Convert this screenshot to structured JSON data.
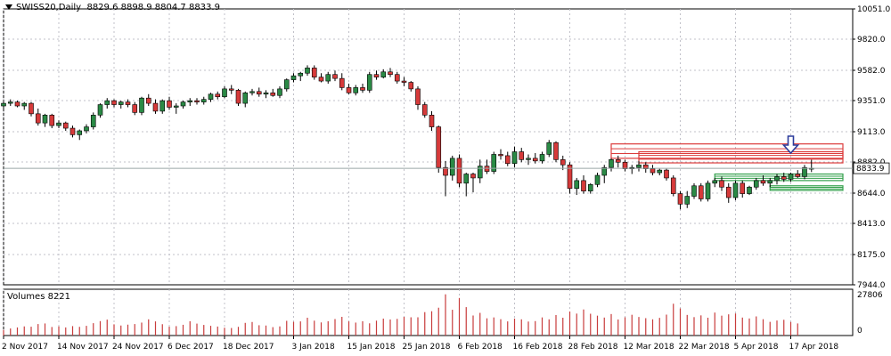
{
  "chart_data": {
    "type": "candlestick",
    "symbol_label": "SWISS20,Daily",
    "ohlc_label": "8829.6 8898.9 8804.7 8833.9",
    "last_price": "8833.9",
    "volume_label": "Volumes 8221",
    "y_ticks": [
      "10051.0",
      "9820.0",
      "9582.0",
      "9351.0",
      "9113.0",
      "8882.0",
      "8644.0",
      "8413.0",
      "8175.0",
      "7944.0"
    ],
    "y_range": [
      7944,
      10051
    ],
    "volume_ticks": [
      "27806",
      "0"
    ],
    "volume_max": 27806,
    "x_tick_labels": [
      "2 Nov 2017",
      "14 Nov 2017",
      "24 Nov 2017",
      "6 Dec 2017",
      "18 Dec 2017",
      "3 Jan 2018",
      "15 Jan 2018",
      "25 Jan 2018",
      "6 Feb 2018",
      "16 Feb 2018",
      "28 Feb 2018",
      "12 Mar 2018",
      "22 Mar 2018",
      "5 Apr 2018",
      "17 Apr 2018"
    ],
    "x_tick_index": [
      0,
      8,
      16,
      24,
      32,
      42,
      50,
      58,
      66,
      74,
      82,
      90,
      98,
      106,
      114
    ],
    "candles": [
      [
        9310,
        9340,
        9290,
        9330
      ],
      [
        9330,
        9360,
        9310,
        9340
      ],
      [
        9340,
        9350,
        9300,
        9310
      ],
      [
        9310,
        9340,
        9280,
        9330
      ],
      [
        9330,
        9340,
        9230,
        9250
      ],
      [
        9250,
        9290,
        9160,
        9180
      ],
      [
        9180,
        9250,
        9150,
        9240
      ],
      [
        9240,
        9250,
        9140,
        9160
      ],
      [
        9160,
        9200,
        9140,
        9180
      ],
      [
        9180,
        9190,
        9120,
        9140
      ],
      [
        9140,
        9160,
        9070,
        9090
      ],
      [
        9090,
        9130,
        9050,
        9120
      ],
      [
        9120,
        9170,
        9100,
        9150
      ],
      [
        9150,
        9260,
        9130,
        9240
      ],
      [
        9240,
        9330,
        9220,
        9320
      ],
      [
        9320,
        9370,
        9290,
        9350
      ],
      [
        9350,
        9360,
        9300,
        9320
      ],
      [
        9320,
        9350,
        9290,
        9340
      ],
      [
        9340,
        9360,
        9300,
        9320
      ],
      [
        9320,
        9340,
        9240,
        9260
      ],
      [
        9260,
        9380,
        9240,
        9370
      ],
      [
        9370,
        9400,
        9310,
        9330
      ],
      [
        9330,
        9360,
        9250,
        9270
      ],
      [
        9270,
        9360,
        9250,
        9350
      ],
      [
        9350,
        9380,
        9280,
        9300
      ],
      [
        9300,
        9330,
        9250,
        9310
      ],
      [
        9310,
        9350,
        9290,
        9340
      ],
      [
        9340,
        9370,
        9310,
        9350
      ],
      [
        9350,
        9370,
        9320,
        9340
      ],
      [
        9340,
        9380,
        9320,
        9360
      ],
      [
        9360,
        9410,
        9340,
        9400
      ],
      [
        9400,
        9420,
        9360,
        9380
      ],
      [
        9380,
        9460,
        9370,
        9440
      ],
      [
        9440,
        9470,
        9400,
        9430
      ],
      [
        9430,
        9440,
        9310,
        9330
      ],
      [
        9330,
        9420,
        9300,
        9410
      ],
      [
        9410,
        9440,
        9390,
        9420
      ],
      [
        9420,
        9450,
        9380,
        9400
      ],
      [
        9400,
        9430,
        9370,
        9410
      ],
      [
        9410,
        9440,
        9380,
        9390
      ],
      [
        9390,
        9460,
        9370,
        9440
      ],
      [
        9440,
        9520,
        9420,
        9510
      ],
      [
        9510,
        9560,
        9490,
        9540
      ],
      [
        9540,
        9570,
        9500,
        9560
      ],
      [
        9560,
        9620,
        9540,
        9600
      ],
      [
        9600,
        9620,
        9510,
        9530
      ],
      [
        9530,
        9560,
        9490,
        9500
      ],
      [
        9500,
        9570,
        9480,
        9550
      ],
      [
        9550,
        9580,
        9500,
        9520
      ],
      [
        9520,
        9560,
        9430,
        9450
      ],
      [
        9450,
        9480,
        9400,
        9410
      ],
      [
        9410,
        9470,
        9390,
        9450
      ],
      [
        9450,
        9480,
        9410,
        9430
      ],
      [
        9430,
        9570,
        9410,
        9550
      ],
      [
        9550,
        9580,
        9510,
        9530
      ],
      [
        9530,
        9590,
        9520,
        9570
      ],
      [
        9570,
        9600,
        9530,
        9550
      ],
      [
        9550,
        9570,
        9480,
        9500
      ],
      [
        9500,
        9530,
        9460,
        9490
      ],
      [
        9490,
        9500,
        9420,
        9440
      ],
      [
        9440,
        9460,
        9280,
        9320
      ],
      [
        9320,
        9340,
        9220,
        9240
      ],
      [
        9240,
        9270,
        9120,
        9150
      ],
      [
        9150,
        9160,
        8800,
        8840
      ],
      [
        8840,
        8890,
        8620,
        8780
      ],
      [
        8780,
        8930,
        8740,
        8910
      ],
      [
        8910,
        8940,
        8690,
        8720
      ],
      [
        8720,
        8800,
        8620,
        8790
      ],
      [
        8790,
        8800,
        8650,
        8760
      ],
      [
        8760,
        8900,
        8720,
        8850
      ],
      [
        8850,
        8900,
        8790,
        8810
      ],
      [
        8810,
        8960,
        8790,
        8940
      ],
      [
        8940,
        8980,
        8900,
        8930
      ],
      [
        8930,
        8960,
        8850,
        8870
      ],
      [
        8870,
        9000,
        8840,
        8960
      ],
      [
        8960,
        8990,
        8880,
        8900
      ],
      [
        8900,
        8940,
        8860,
        8910
      ],
      [
        8910,
        8950,
        8870,
        8890
      ],
      [
        8890,
        8960,
        8870,
        8940
      ],
      [
        8940,
        9050,
        8920,
        9030
      ],
      [
        9030,
        9040,
        8880,
        8900
      ],
      [
        8900,
        8930,
        8820,
        8860
      ],
      [
        8860,
        8880,
        8640,
        8680
      ],
      [
        8680,
        8760,
        8630,
        8740
      ],
      [
        8740,
        8780,
        8640,
        8660
      ],
      [
        8660,
        8720,
        8640,
        8710
      ],
      [
        8710,
        8800,
        8690,
        8780
      ],
      [
        8780,
        8860,
        8720,
        8840
      ],
      [
        8840,
        8910,
        8810,
        8900
      ],
      [
        8900,
        8930,
        8840,
        8880
      ],
      [
        8880,
        8900,
        8810,
        8830
      ],
      [
        8830,
        8860,
        8790,
        8840
      ],
      [
        8840,
        8890,
        8810,
        8860
      ],
      [
        8860,
        8880,
        8800,
        8830
      ],
      [
        8830,
        8860,
        8780,
        8800
      ],
      [
        8800,
        8830,
        8780,
        8820
      ],
      [
        8820,
        8830,
        8740,
        8760
      ],
      [
        8760,
        8780,
        8620,
        8640
      ],
      [
        8640,
        8660,
        8520,
        8560
      ],
      [
        8560,
        8660,
        8530,
        8620
      ],
      [
        8620,
        8720,
        8600,
        8700
      ],
      [
        8700,
        8720,
        8580,
        8600
      ],
      [
        8600,
        8740,
        8580,
        8720
      ],
      [
        8720,
        8760,
        8690,
        8740
      ],
      [
        8740,
        8770,
        8660,
        8690
      ],
      [
        8690,
        8720,
        8570,
        8610
      ],
      [
        8610,
        8740,
        8590,
        8720
      ],
      [
        8720,
        8740,
        8610,
        8640
      ],
      [
        8640,
        8700,
        8630,
        8690
      ],
      [
        8690,
        8760,
        8670,
        8740
      ],
      [
        8740,
        8780,
        8700,
        8720
      ],
      [
        8720,
        8760,
        8690,
        8740
      ],
      [
        8740,
        8790,
        8710,
        8770
      ],
      [
        8770,
        8800,
        8730,
        8750
      ],
      [
        8750,
        8800,
        8730,
        8790
      ],
      [
        8790,
        8820,
        8760,
        8770
      ],
      [
        8770,
        8860,
        8750,
        8840
      ],
      [
        8830,
        8899,
        8805,
        8834
      ]
    ],
    "volumes": [
      3800,
      4800,
      5500,
      6200,
      6000,
      7800,
      8200,
      5800,
      6200,
      5500,
      6400,
      5900,
      6600,
      8400,
      9800,
      10800,
      7600,
      6800,
      7400,
      7800,
      8800,
      11000,
      9600,
      7700,
      6000,
      6400,
      7300,
      9700,
      8100,
      7200,
      6600,
      6100,
      5300,
      5100,
      5900,
      8600,
      9200,
      7000,
      6800,
      5700,
      6200,
      10000,
      9300,
      9600,
      12100,
      10100,
      8900,
      9700,
      11200,
      12700,
      9600,
      8800,
      9700,
      8300,
      10100,
      11500,
      10900,
      11300,
      12700,
      12400,
      12400,
      15900,
      16500,
      18900,
      28000,
      17500,
      25500,
      19300,
      13600,
      15400,
      11700,
      12300,
      11100,
      9600,
      11500,
      11000,
      9500,
      9800,
      12300,
      11000,
      13900,
      12100,
      16300,
      14900,
      17700,
      14800,
      13500,
      12200,
      14600,
      10900,
      12400,
      14100,
      12600,
      11800,
      11000,
      12000,
      14200,
      21600,
      18400,
      14000,
      12500,
      13700,
      12100,
      15600,
      13500,
      14400,
      15000,
      12200,
      11600,
      13000,
      11100,
      9300,
      10200,
      10700,
      9200,
      8221
    ],
    "zones": [
      {
        "color": "#dc3c3c",
        "from_index": 88,
        "y_low": 8910,
        "y_high": 9020
      },
      {
        "color": "#dc3c3c",
        "from_index": 92,
        "y_low": 8875,
        "y_high": 8960
      },
      {
        "color": "#32a04b",
        "from_index": 103,
        "y_low": 8740,
        "y_high": 8790
      },
      {
        "color": "#32a04b",
        "from_index": 111,
        "y_low": 8665,
        "y_high": 8700
      }
    ],
    "arrow_index": 114,
    "colors": {
      "up": "#2a8a45",
      "down": "#d63a3a",
      "volume": "#c83c3c",
      "grid": "#c0c0c8",
      "price_line": "#9aa8a8",
      "arrow": "#2c3c9c"
    }
  }
}
